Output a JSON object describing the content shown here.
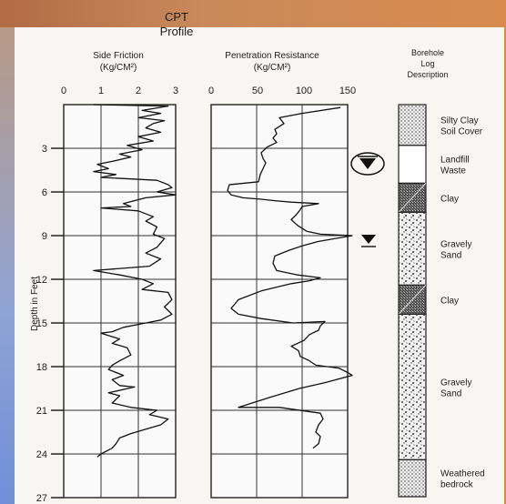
{
  "header": {
    "title_line1": "CPT",
    "title_line2": "Profile"
  },
  "side_friction": {
    "title_line1": "Side Friction",
    "title_line2": "(Kg/CM²)",
    "ticks": [
      "0",
      "1",
      "2",
      "3"
    ],
    "xlim": [
      0,
      3
    ]
  },
  "penetration": {
    "title_line1": "Penetration Resistance",
    "title_line2": "(Kg/CM²)",
    "ticks": [
      "0",
      "50",
      "100",
      "150"
    ],
    "xlim": [
      0,
      150
    ]
  },
  "depth_axis": {
    "label": "Depth in Feet",
    "ticks": [
      "3",
      "6",
      "9",
      "12",
      "15",
      "18",
      "21",
      "24",
      "27"
    ],
    "ylim": [
      0,
      27
    ]
  },
  "borehole": {
    "title_line1": "Borehole",
    "title_line2": "Log",
    "title_line3": "Description",
    "layers": [
      {
        "top": 0,
        "bottom": 2.8,
        "pattern": "fine-dots",
        "label": [
          "Silty Clay",
          "Soil Cover"
        ]
      },
      {
        "top": 2.8,
        "bottom": 5.4,
        "pattern": "blank",
        "label": [
          "Landfill",
          "Waste"
        ]
      },
      {
        "top": 5.4,
        "bottom": 7.4,
        "pattern": "clay",
        "label": [
          "Clay"
        ]
      },
      {
        "top": 7.4,
        "bottom": 12.4,
        "pattern": "gravel",
        "label": [
          "Gravely",
          "Sand"
        ]
      },
      {
        "top": 12.4,
        "bottom": 14.4,
        "pattern": "clay",
        "label": [
          "Clay"
        ]
      },
      {
        "top": 14.4,
        "bottom": 24.4,
        "pattern": "gravel",
        "label": [
          "Gravely",
          "Sand"
        ]
      },
      {
        "top": 24.4,
        "bottom": 27,
        "pattern": "fine-dots",
        "label": [
          "Weathered",
          "bedrock"
        ]
      }
    ]
  },
  "chart_data": {
    "type": "line",
    "xlabel": "",
    "ylabel": "Depth in Feet",
    "ylim": [
      0,
      27
    ],
    "series": [
      {
        "name": "Side Friction (Kg/CM²)",
        "xlim": [
          0,
          3
        ],
        "points": [
          [
            0.8,
            0
          ],
          [
            2.8,
            0.1
          ],
          [
            2.1,
            0.4
          ],
          [
            2.6,
            0.6
          ],
          [
            2.0,
            0.9
          ],
          [
            2.7,
            1.1
          ],
          [
            2.4,
            1.3
          ],
          [
            2.2,
            1.6
          ],
          [
            2.6,
            1.9
          ],
          [
            2.0,
            2.2
          ],
          [
            2.4,
            2.5
          ],
          [
            1.7,
            2.8
          ],
          [
            2.1,
            3.1
          ],
          [
            1.5,
            3.4
          ],
          [
            1.8,
            3.6
          ],
          [
            1.3,
            3.9
          ],
          [
            0.9,
            4.1
          ],
          [
            1.2,
            4.4
          ],
          [
            0.8,
            4.6
          ],
          [
            1.4,
            4.8
          ],
          [
            1.0,
            5.0
          ],
          [
            2.5,
            5.2
          ],
          [
            2.8,
            5.5
          ],
          [
            2.9,
            5.7
          ],
          [
            2.5,
            6.0
          ],
          [
            3.0,
            6.2
          ],
          [
            2.2,
            6.4
          ],
          [
            1.6,
            6.8
          ],
          [
            1.8,
            7.0
          ],
          [
            1.0,
            7.1
          ],
          [
            2.0,
            7.3
          ],
          [
            2.4,
            7.7
          ],
          [
            2.2,
            8.0
          ],
          [
            2.5,
            8.4
          ],
          [
            2.4,
            8.9
          ],
          [
            2.7,
            9.2
          ],
          [
            2.5,
            9.8
          ],
          [
            2.2,
            10.2
          ],
          [
            2.6,
            10.6
          ],
          [
            2.3,
            11.1
          ],
          [
            0.8,
            11.4
          ],
          [
            1.5,
            11.7
          ],
          [
            2.1,
            12.0
          ],
          [
            2.4,
            12.3
          ],
          [
            2.1,
            12.7
          ],
          [
            2.8,
            12.9
          ],
          [
            2.9,
            13.4
          ],
          [
            2.7,
            13.9
          ],
          [
            2.9,
            14.4
          ],
          [
            2.6,
            14.8
          ],
          [
            2.2,
            15.0
          ],
          [
            1.6,
            15.3
          ],
          [
            1.3,
            15.6
          ],
          [
            1.0,
            15.7
          ],
          [
            1.5,
            16.1
          ],
          [
            1.3,
            16.4
          ],
          [
            1.7,
            16.7
          ],
          [
            1.8,
            17.2
          ],
          [
            1.5,
            17.6
          ],
          [
            1.3,
            17.9
          ],
          [
            1.2,
            18.2
          ],
          [
            1.6,
            18.6
          ],
          [
            1.3,
            18.9
          ],
          [
            1.5,
            19.3
          ],
          [
            1.9,
            19.4
          ],
          [
            1.2,
            19.8
          ],
          [
            1.5,
            20.0
          ],
          [
            1.3,
            20.5
          ],
          [
            1.8,
            20.8
          ],
          [
            2.5,
            21.0
          ],
          [
            2.3,
            21.3
          ],
          [
            2.8,
            21.6
          ],
          [
            2.6,
            22.0
          ],
          [
            2.2,
            22.3
          ],
          [
            1.8,
            22.6
          ],
          [
            1.5,
            22.9
          ],
          [
            1.4,
            23.3
          ],
          [
            1.3,
            23.6
          ],
          [
            1.0,
            24.0
          ],
          [
            0.9,
            24.2
          ]
        ]
      },
      {
        "name": "Penetration Resistance (Kg/CM²)",
        "xlim": [
          0,
          150
        ],
        "points": [
          [
            142,
            0.2
          ],
          [
            100,
            0.6
          ],
          [
            75,
            0.9
          ],
          [
            80,
            1.3
          ],
          [
            70,
            1.7
          ],
          [
            72,
            2.0
          ],
          [
            68,
            2.3
          ],
          [
            72,
            2.6
          ],
          [
            62,
            2.9
          ],
          [
            55,
            3.3
          ],
          [
            57,
            3.7
          ],
          [
            60,
            4.0
          ],
          [
            57,
            4.4
          ],
          [
            54,
            4.8
          ],
          [
            52,
            5.3
          ],
          [
            20,
            5.5
          ],
          [
            18,
            5.9
          ],
          [
            22,
            6.2
          ],
          [
            35,
            6.4
          ],
          [
            55,
            6.5
          ],
          [
            70,
            6.6
          ],
          [
            88,
            6.7
          ],
          [
            118,
            6.8
          ],
          [
            100,
            7.0
          ],
          [
            97,
            7.3
          ],
          [
            93,
            7.6
          ],
          [
            88,
            7.9
          ],
          [
            95,
            8.3
          ],
          [
            105,
            8.7
          ],
          [
            120,
            8.9
          ],
          [
            155,
            9.0
          ],
          [
            118,
            9.4
          ],
          [
            100,
            9.7
          ],
          [
            86,
            10.0
          ],
          [
            70,
            10.4
          ],
          [
            68,
            10.9
          ],
          [
            72,
            11.4
          ],
          [
            95,
            11.7
          ],
          [
            120,
            11.9
          ],
          [
            108,
            12.1
          ],
          [
            88,
            12.3
          ],
          [
            55,
            12.8
          ],
          [
            30,
            13.4
          ],
          [
            22,
            14.0
          ],
          [
            30,
            14.4
          ],
          [
            55,
            14.7
          ],
          [
            90,
            15.0
          ],
          [
            125,
            14.9
          ],
          [
            120,
            15.2
          ],
          [
            118,
            15.5
          ],
          [
            108,
            15.8
          ],
          [
            102,
            16.2
          ],
          [
            88,
            16.6
          ],
          [
            96,
            16.9
          ],
          [
            98,
            17.3
          ],
          [
            108,
            17.6
          ],
          [
            115,
            17.9
          ],
          [
            140,
            18.1
          ],
          [
            150,
            18.4
          ],
          [
            155,
            18.6
          ],
          [
            125,
            19.1
          ],
          [
            97,
            19.5
          ],
          [
            65,
            20.1
          ],
          [
            40,
            20.6
          ],
          [
            30,
            20.8
          ],
          [
            75,
            20.8
          ],
          [
            120,
            21.2
          ],
          [
            123,
            21.6
          ],
          [
            118,
            22.0
          ],
          [
            115,
            22.5
          ],
          [
            120,
            22.8
          ],
          [
            118,
            23.3
          ],
          [
            112,
            23.6
          ]
        ]
      }
    ]
  }
}
